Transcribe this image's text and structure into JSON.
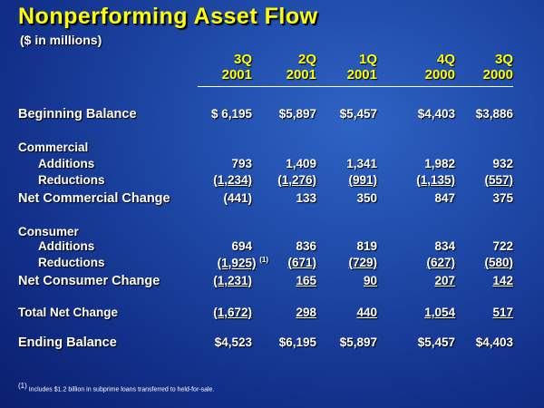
{
  "title": "Nonperforming Asset Flow",
  "subtitle": "($ in millions)",
  "columns": [
    {
      "q": "3Q",
      "y": "2001"
    },
    {
      "q": "2Q",
      "y": "2001"
    },
    {
      "q": "1Q",
      "y": "2001"
    },
    {
      "q": "4Q",
      "y": "2000"
    },
    {
      "q": "3Q",
      "y": "2000"
    }
  ],
  "rows": {
    "beginning": {
      "label": "Beginning Balance",
      "values": [
        "$ 6,195",
        "$5,897",
        "$5,457",
        "$4,403",
        "$3,886"
      ]
    },
    "commercial": {
      "label": "Commercial"
    },
    "com_add": {
      "label": "Additions",
      "values": [
        "793",
        "1,409",
        "1,341",
        "1,982",
        "932"
      ]
    },
    "com_red": {
      "label": "Reductions",
      "values": [
        "(1,234)",
        "(1,276)",
        "(991)",
        "(1,135)",
        "(557)"
      ]
    },
    "net_com": {
      "label": "Net Commercial Change",
      "values": [
        "(441)",
        "133",
        "350",
        "847",
        "375"
      ]
    },
    "consumer": {
      "label": "Consumer"
    },
    "con_add": {
      "label": "Additions",
      "values": [
        "694",
        "836",
        "819",
        "834",
        "722"
      ]
    },
    "con_red": {
      "label": "Reductions",
      "values": [
        "(1,925)",
        "(671)",
        "(729)",
        "(627)",
        "(580)"
      ],
      "footnote_mark": "(1)"
    },
    "net_con": {
      "label": "Net Consumer Change",
      "values": [
        "(1,231)",
        "165",
        "90",
        "207",
        "142"
      ]
    },
    "total": {
      "label": "Total Net Change",
      "values": [
        "(1,672)",
        "298",
        "440",
        "1,054",
        "517"
      ]
    },
    "ending": {
      "label": "Ending Balance",
      "values": [
        "$4,523",
        "$6,195",
        "$5,897",
        "$5,457",
        "$4,403"
      ]
    }
  },
  "footnote": {
    "mark": "(1)",
    "text": "Includes $1.2 billion in subprime loans transferred to held-for-sale."
  }
}
